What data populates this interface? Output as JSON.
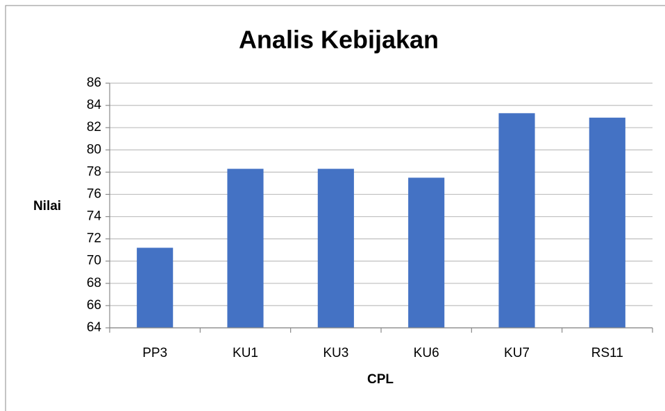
{
  "chart_data": {
    "type": "bar",
    "title": "Analis Kebijakan",
    "x_label": "CPL",
    "y_label": "Nilai",
    "categories": [
      "PP3",
      "KU1",
      "KU3",
      "KU6",
      "KU7",
      "RS11"
    ],
    "values": [
      71.2,
      78.3,
      78.3,
      77.5,
      83.3,
      82.9
    ],
    "color": "#4472c4",
    "ylim": [
      64,
      86
    ],
    "yticks": [
      64,
      66,
      68,
      70,
      72,
      74,
      76,
      78,
      80,
      82,
      84,
      86
    ],
    "grid": true
  }
}
